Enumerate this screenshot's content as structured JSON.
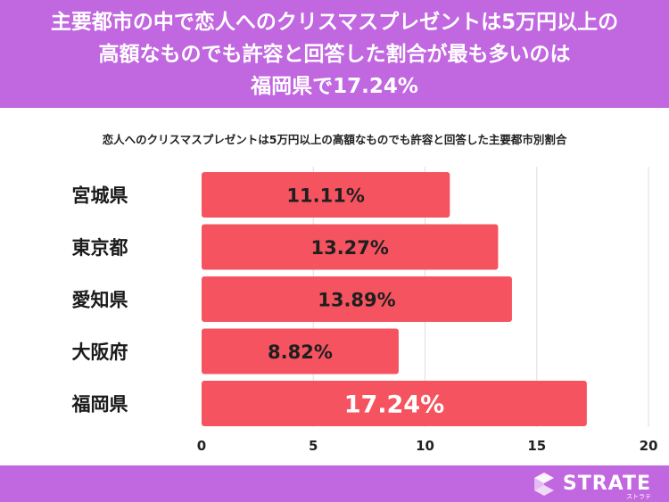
{
  "header": {
    "title_lines": [
      "主要都市の中で恋人へのクリスマスプレゼントは5万円以上の",
      "高額なものでも許容と回答した割合が最も多いのは",
      "福岡県で17.24%"
    ]
  },
  "colors": {
    "header_bg": "#c167e0",
    "bar": "#f5535f",
    "bar_label": "#1f1f1f",
    "bar_label_highlight": "#ffffff",
    "grid": "#dddddd"
  },
  "brand": {
    "name": "STRATE",
    "sub": "ストラテ",
    "icon": "strate-logo-icon"
  },
  "chart_data": {
    "type": "bar",
    "orientation": "horizontal",
    "title": "恋人へのクリスマスプレゼントは5万円以上の高額なものでも許容と回答した主要都市別割合",
    "categories": [
      "宮城県",
      "東京都",
      "愛知県",
      "大阪府",
      "福岡県"
    ],
    "values": [
      11.11,
      13.27,
      13.89,
      8.82,
      17.24
    ],
    "value_labels": [
      "11.11%",
      "13.27%",
      "13.89%",
      "8.82%",
      "17.24%"
    ],
    "highlight_index": 4,
    "xlim": [
      0,
      20
    ],
    "xticks": [
      0,
      5,
      10,
      15,
      20
    ],
    "xtick_labels": [
      "0",
      "5",
      "10",
      "15",
      "20"
    ],
    "grid": true,
    "legend": "none"
  }
}
